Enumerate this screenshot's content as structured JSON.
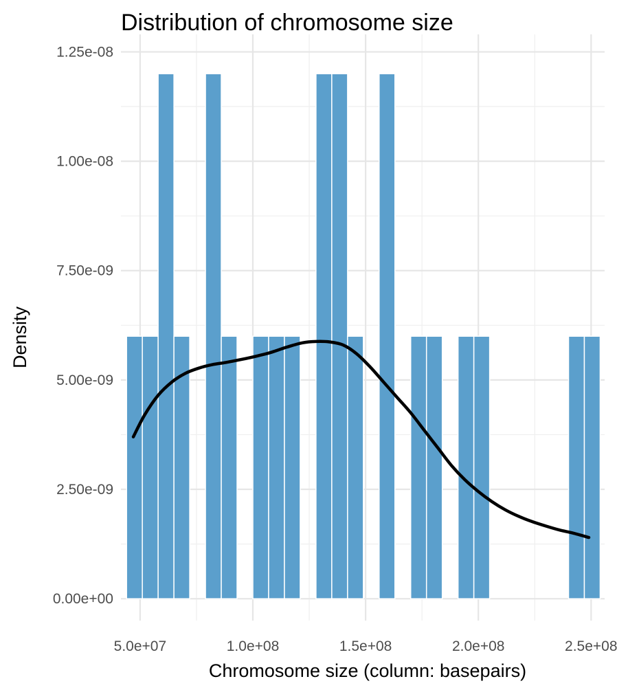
{
  "chart_data": {
    "type": "bar",
    "title": "Distribution of chromosome size",
    "xlabel": "Chromosome size (column: basepairs)",
    "ylabel": "Density",
    "xlim": [
      41500000,
      256000000
    ],
    "ylim": [
      -5e-10,
      1.29e-08
    ],
    "bin_width": 7000000,
    "x_ticks": [
      50000000,
      100000000,
      150000000,
      200000000,
      250000000
    ],
    "x_tick_labels": [
      "5.0e+07",
      "1.0e+08",
      "1.5e+08",
      "2.0e+08",
      "2.5e+08"
    ],
    "y_ticks": [
      0,
      2.5e-09,
      5e-09,
      7.5e-09,
      1e-08,
      1.25e-08
    ],
    "y_tick_labels": [
      "0.00e+00",
      "2.50e-09",
      "5.00e-09",
      "7.50e-09",
      "1.00e-08",
      "1.25e-08"
    ],
    "grid": true,
    "legend": "none",
    "bar_color": "#5b9fcc",
    "line_color": "#000000",
    "histogram": {
      "bin_starts": [
        44000000,
        51000000,
        58000000,
        65000000,
        72000000,
        79000000,
        86000000,
        93000000,
        100000000,
        107000000,
        114000000,
        121000000,
        128000000,
        135000000,
        142000000,
        149000000,
        156000000,
        163000000,
        170000000,
        177000000,
        184000000,
        191000000,
        198000000,
        205000000,
        212000000,
        219000000,
        226000000,
        233000000,
        240000000,
        247000000
      ],
      "densities": [
        6e-09,
        6e-09,
        1.2e-08,
        6e-09,
        0,
        1.2e-08,
        6e-09,
        0,
        6e-09,
        6e-09,
        6e-09,
        0,
        1.2e-08,
        1.2e-08,
        6e-09,
        0,
        1.2e-08,
        0,
        6e-09,
        6e-09,
        0,
        6e-09,
        6e-09,
        0,
        0,
        0,
        0,
        0,
        6e-09,
        6e-09
      ]
    },
    "density_curve": {
      "x": [
        47000000,
        52000000,
        58000000,
        64000000,
        70000000,
        76000000,
        82000000,
        88000000,
        95000000,
        102000000,
        108000000,
        115000000,
        122000000,
        128000000,
        134000000,
        140000000,
        146000000,
        152000000,
        158000000,
        164000000,
        170000000,
        176000000,
        182000000,
        188000000,
        194000000,
        200000000,
        206000000,
        212000000,
        218000000,
        224000000,
        230000000,
        236000000,
        242000000,
        249000000
      ],
      "y": [
        3.7e-09,
        4.2e-09,
        4.65e-09,
        4.95e-09,
        5.15e-09,
        5.27e-09,
        5.35e-09,
        5.4e-09,
        5.47e-09,
        5.55e-09,
        5.63e-09,
        5.75e-09,
        5.85e-09,
        5.88e-09,
        5.87e-09,
        5.8e-09,
        5.6e-09,
        5.3e-09,
        4.95e-09,
        4.6e-09,
        4.25e-09,
        3.85e-09,
        3.45e-09,
        3.05e-09,
        2.72e-09,
        2.45e-09,
        2.22e-09,
        2.03e-09,
        1.88e-09,
        1.76e-09,
        1.66e-09,
        1.57e-09,
        1.5e-09,
        1.4e-09
      ]
    }
  }
}
